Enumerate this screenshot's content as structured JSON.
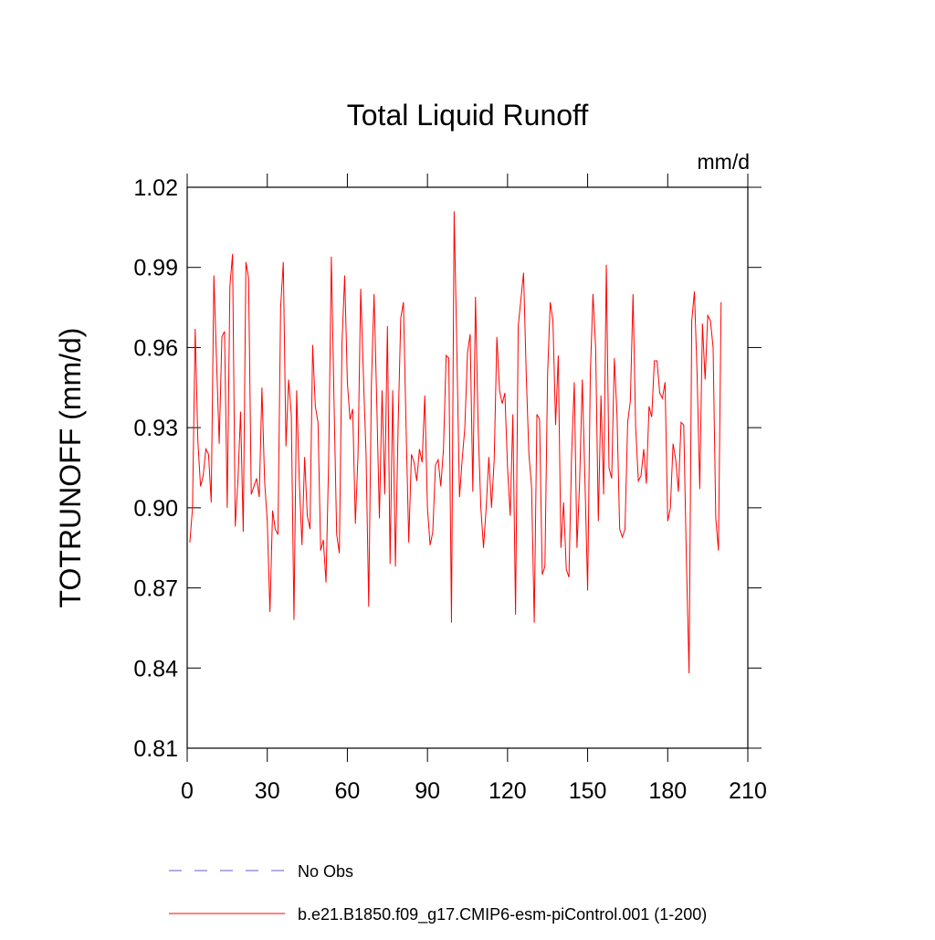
{
  "chart_data": {
    "type": "line",
    "title": "Total Liquid Runoff",
    "units": "mm/d",
    "ylabel": "TOTRUNOFF  (mm/d)",
    "xlim": [
      0,
      210
    ],
    "xticks": [
      0,
      30,
      60,
      90,
      120,
      150,
      180,
      210
    ],
    "ylim": [
      0.81,
      1.02
    ],
    "yticks": [
      0.81,
      0.84,
      0.87,
      {
        "value": 0.9,
        "label": "0.90"
      },
      0.93,
      0.96,
      0.99,
      1.02
    ],
    "x": [
      1,
      2,
      3,
      4,
      5,
      6,
      7,
      8,
      9,
      10,
      11,
      12,
      13,
      14,
      15,
      16,
      17,
      18,
      19,
      20,
      21,
      22,
      23,
      24,
      25,
      26,
      27,
      28,
      29,
      30,
      31,
      32,
      33,
      34,
      35,
      36,
      37,
      38,
      39,
      40,
      41,
      42,
      43,
      44,
      45,
      46,
      47,
      48,
      49,
      50,
      51,
      52,
      53,
      54,
      55,
      56,
      57,
      58,
      59,
      60,
      61,
      62,
      63,
      64,
      65,
      66,
      67,
      68,
      69,
      70,
      71,
      72,
      73,
      74,
      75,
      76,
      77,
      78,
      79,
      80,
      81,
      82,
      83,
      84,
      85,
      86,
      87,
      88,
      89,
      90,
      91,
      92,
      93,
      94,
      95,
      96,
      97,
      98,
      99,
      100,
      101,
      102,
      103,
      104,
      105,
      106,
      107,
      108,
      109,
      110,
      111,
      112,
      113,
      114,
      115,
      116,
      117,
      118,
      119,
      120,
      121,
      122,
      123,
      124,
      125,
      126,
      127,
      128,
      129,
      130,
      131,
      132,
      133,
      134,
      135,
      136,
      137,
      138,
      139,
      140,
      141,
      142,
      143,
      144,
      145,
      146,
      147,
      148,
      149,
      150,
      151,
      152,
      153,
      154,
      155,
      156,
      157,
      158,
      159,
      160,
      161,
      162,
      163,
      164,
      165,
      166,
      167,
      168,
      169,
      170,
      171,
      172,
      173,
      174,
      175,
      176,
      177,
      178,
      179,
      180,
      181,
      182,
      183,
      184,
      185,
      186,
      187,
      188,
      189,
      190,
      191,
      192,
      193,
      194,
      195,
      196,
      197,
      198,
      199,
      200
    ],
    "series": [
      {
        "name": "No Obs",
        "color": "#6a5acd",
        "dashed": true,
        "values": [
          null,
          null,
          null,
          null,
          null,
          null,
          null,
          null,
          null,
          null,
          null,
          null,
          null,
          null,
          null,
          null,
          null,
          null,
          null,
          null,
          null,
          null,
          null,
          null,
          null,
          null,
          null,
          null,
          null,
          null,
          null,
          null,
          null,
          null,
          null,
          null,
          null,
          null,
          null,
          null,
          null,
          null,
          null,
          null,
          null,
          null,
          null,
          null,
          null,
          null,
          null,
          null,
          null,
          null,
          null,
          null,
          null,
          null,
          null,
          null,
          null,
          null,
          null,
          null,
          null,
          null,
          null,
          null,
          null,
          null,
          null,
          null,
          null,
          null,
          null,
          null,
          null,
          null,
          null,
          null,
          null,
          null,
          null,
          null,
          null,
          null,
          null,
          null,
          null,
          null,
          null,
          null,
          null,
          null,
          null,
          null,
          null,
          null,
          null,
          null,
          null,
          null,
          null,
          null,
          null,
          null,
          null,
          null,
          null,
          null,
          null,
          null,
          null,
          null,
          null,
          null,
          null,
          null,
          null,
          null,
          null,
          null,
          null,
          null,
          null,
          null,
          null,
          null,
          null,
          null,
          null,
          null,
          null,
          null,
          null,
          null,
          null,
          null,
          null,
          null,
          null,
          null,
          null,
          null,
          null,
          null,
          null,
          null,
          null,
          null,
          null,
          null,
          null,
          null,
          null,
          null,
          null,
          null,
          null,
          null,
          null,
          null,
          null,
          null,
          null,
          null,
          null,
          null,
          null,
          null,
          null,
          null,
          null,
          null,
          null,
          null,
          null,
          null,
          null,
          null,
          null,
          null,
          null,
          null,
          null,
          null,
          null,
          null,
          null,
          null,
          null,
          null,
          null,
          null,
          null,
          null,
          null,
          null,
          null,
          null
        ]
      },
      {
        "name": "b.e21.B1850.f09_g17.CMIP6-esm-piControl.001 (1-200)",
        "color": "#ff0000",
        "dashed": false,
        "values": [
          0.887,
          0.9,
          0.967,
          0.925,
          0.908,
          0.912,
          0.922,
          0.92,
          0.902,
          0.987,
          0.955,
          0.924,
          0.964,
          0.966,
          0.9,
          0.983,
          0.995,
          0.893,
          0.91,
          0.936,
          0.891,
          0.992,
          0.986,
          0.905,
          0.908,
          0.911,
          0.904,
          0.945,
          0.91,
          0.895,
          0.861,
          0.899,
          0.892,
          0.89,
          0.975,
          0.992,
          0.923,
          0.948,
          0.935,
          0.858,
          0.944,
          0.91,
          0.886,
          0.919,
          0.897,
          0.892,
          0.961,
          0.938,
          0.932,
          0.884,
          0.888,
          0.872,
          0.918,
          0.994,
          0.94,
          0.89,
          0.883,
          0.962,
          0.987,
          0.947,
          0.933,
          0.937,
          0.894,
          0.92,
          0.982,
          0.95,
          0.92,
          0.863,
          0.946,
          0.98,
          0.94,
          0.896,
          0.944,
          0.905,
          0.968,
          0.879,
          0.944,
          0.878,
          0.93,
          0.971,
          0.977,
          0.93,
          0.887,
          0.92,
          0.917,
          0.91,
          0.922,
          0.917,
          0.942,
          0.9,
          0.886,
          0.891,
          0.916,
          0.918,
          0.908,
          0.922,
          0.957,
          0.956,
          0.857,
          1.011,
          0.96,
          0.904,
          0.918,
          0.93,
          0.958,
          0.965,
          0.906,
          0.979,
          0.93,
          0.9,
          0.885,
          0.9,
          0.919,
          0.9,
          0.918,
          0.964,
          0.944,
          0.939,
          0.943,
          0.915,
          0.897,
          0.935,
          0.86,
          0.968,
          0.978,
          0.988,
          0.95,
          0.92,
          0.908,
          0.857,
          0.935,
          0.933,
          0.875,
          0.878,
          0.95,
          0.977,
          0.97,
          0.931,
          0.957,
          0.885,
          0.902,
          0.877,
          0.874,
          0.92,
          0.947,
          0.885,
          0.91,
          0.948,
          0.91,
          0.869,
          0.95,
          0.98,
          0.96,
          0.895,
          0.942,
          0.905,
          0.991,
          0.915,
          0.911,
          0.956,
          0.935,
          0.892,
          0.889,
          0.892,
          0.932,
          0.94,
          0.98,
          0.93,
          0.91,
          0.912,
          0.922,
          0.909,
          0.938,
          0.934,
          0.955,
          0.955,
          0.943,
          0.941,
          0.947,
          0.895,
          0.9,
          0.924,
          0.918,
          0.906,
          0.932,
          0.931,
          0.88,
          0.838,
          0.97,
          0.981,
          0.95,
          0.907,
          0.969,
          0.948,
          0.972,
          0.97,
          0.96,
          0.896,
          0.884,
          0.977
        ]
      }
    ]
  }
}
